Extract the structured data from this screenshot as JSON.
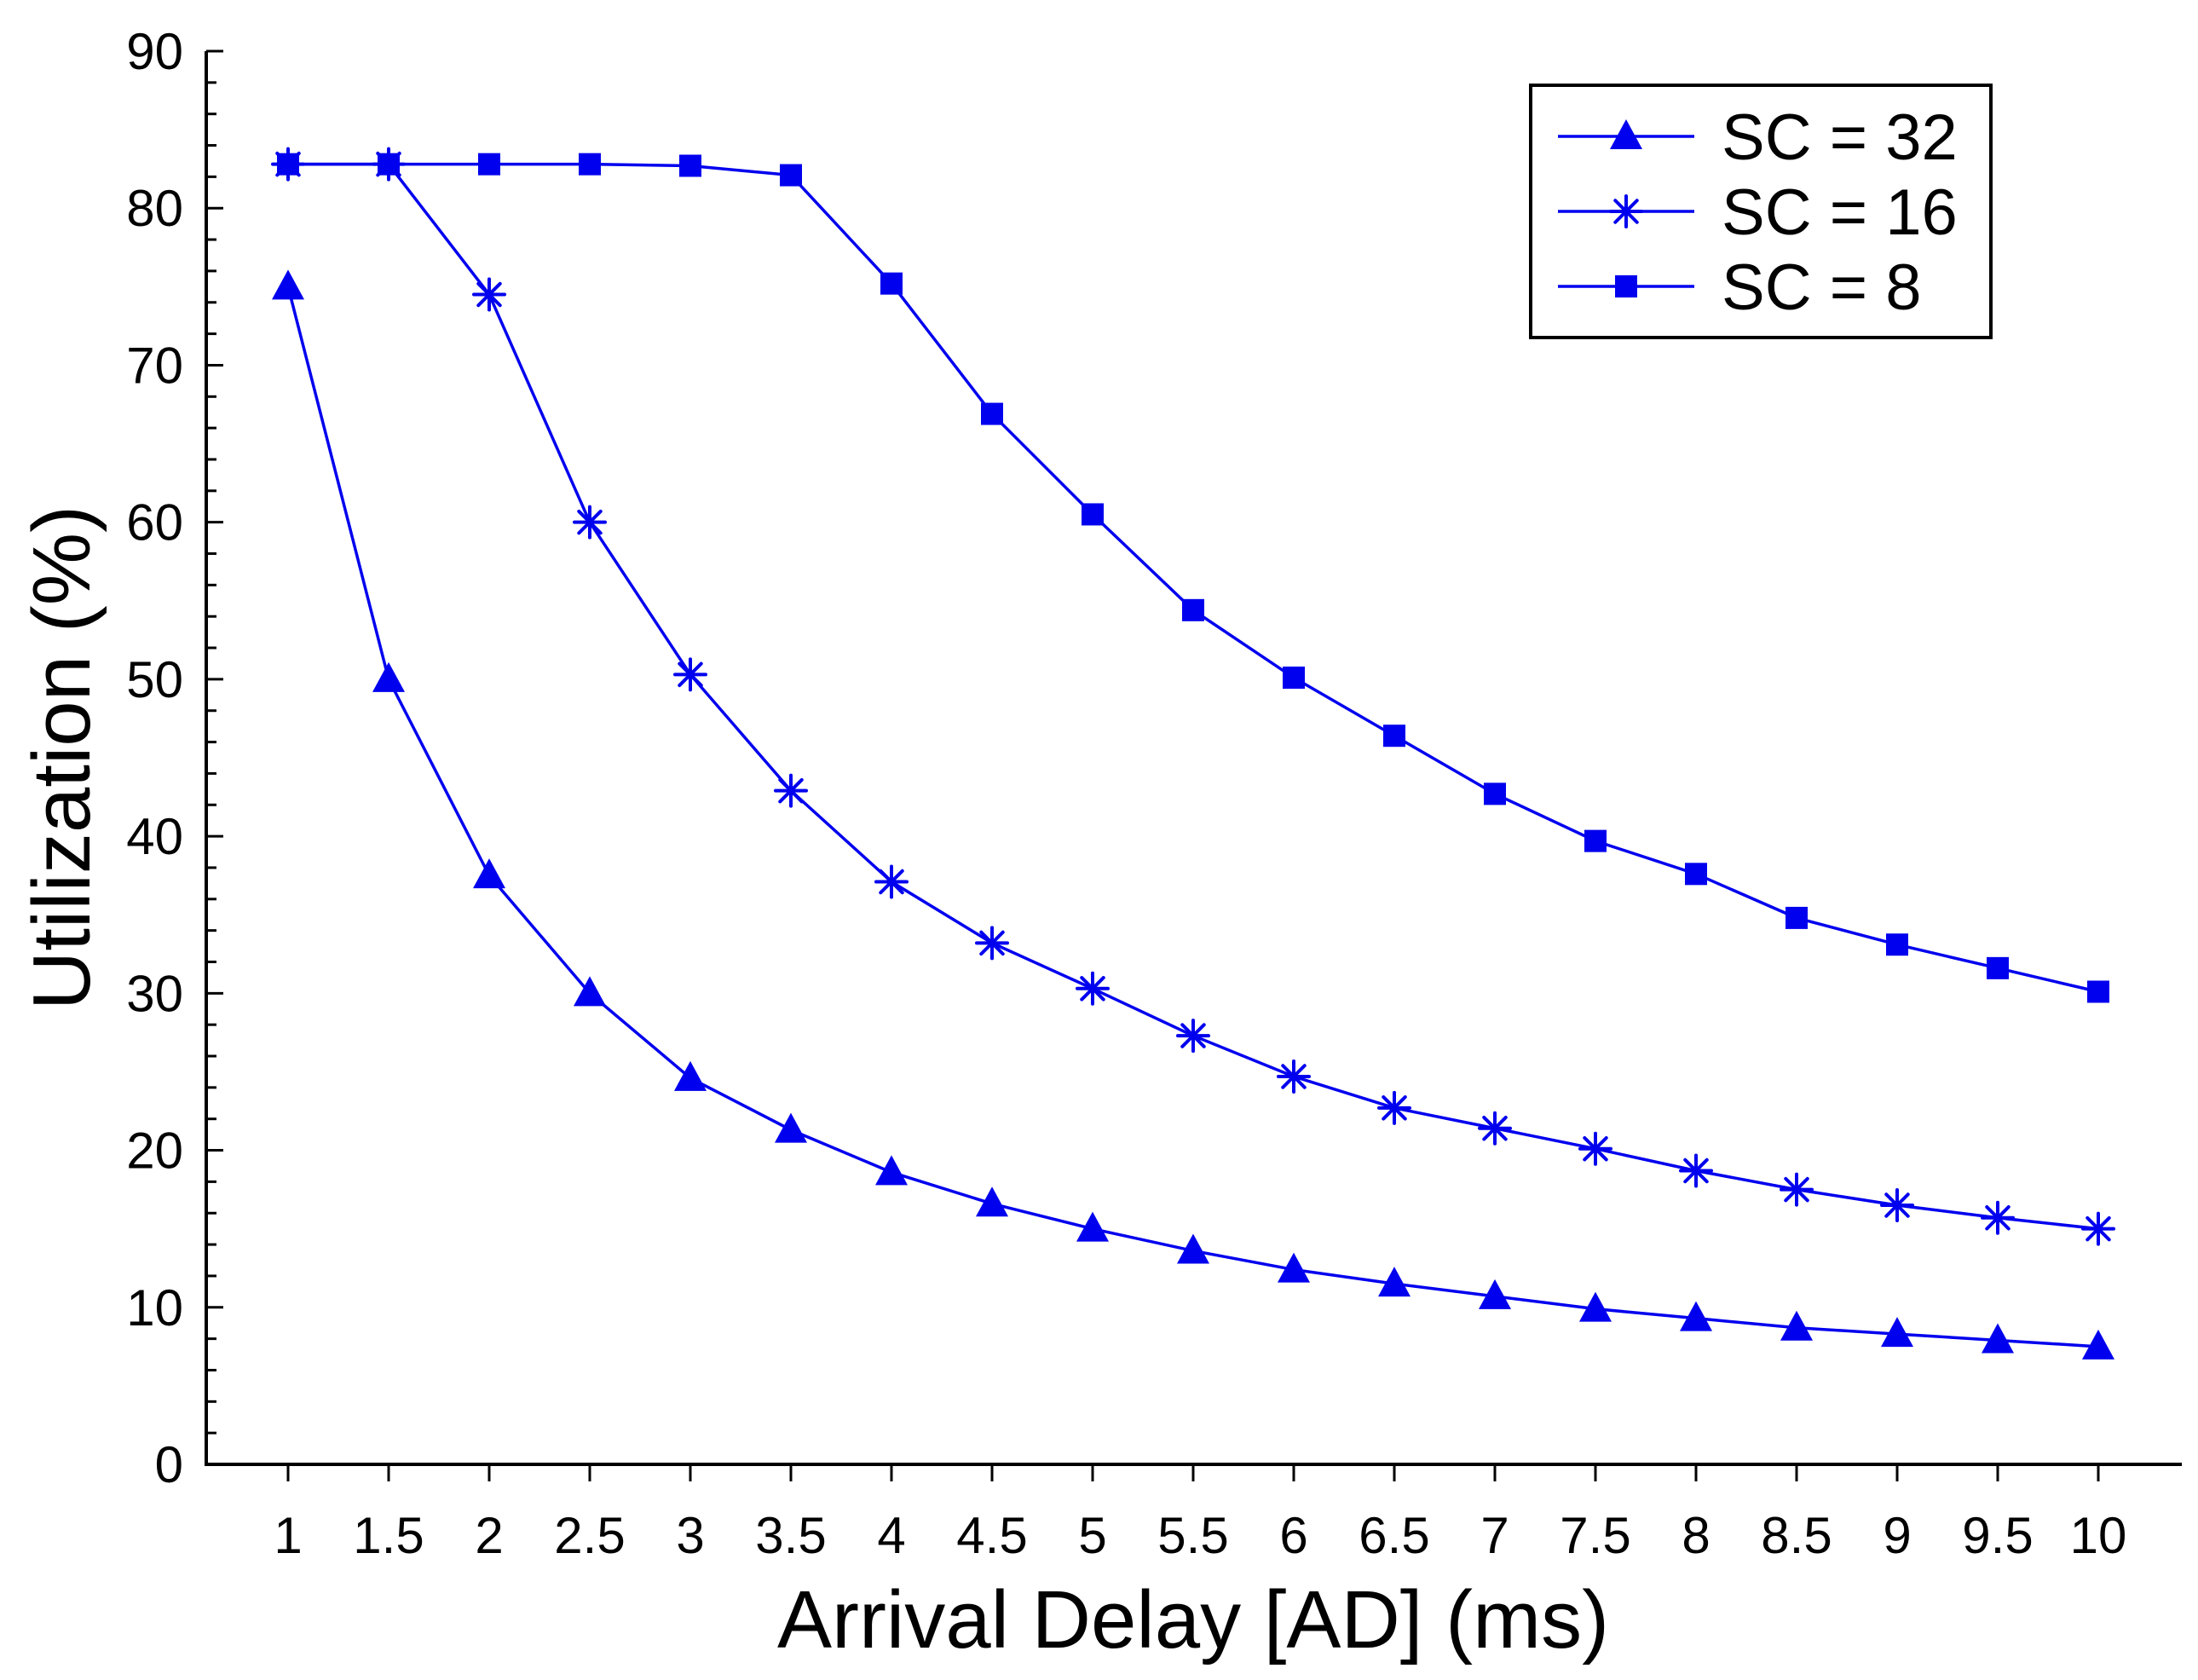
{
  "chart_data": {
    "type": "line",
    "title": "",
    "xlabel": "Arrival Delay [AD] (ms)",
    "ylabel": "Utilization (%)",
    "x": [
      1,
      1.5,
      2,
      2.5,
      3,
      3.5,
      4,
      4.5,
      5,
      5.5,
      6,
      6.5,
      7,
      7.5,
      8,
      8.5,
      9,
      9.5,
      10
    ],
    "x_tick_labels": [
      "1",
      "1.5",
      "2",
      "2.5",
      "3",
      "3.5",
      "4",
      "4.5",
      "5",
      "5.5",
      "6",
      "6.5",
      "7",
      "7.5",
      "8",
      "8.5",
      "9",
      "9.5",
      "10"
    ],
    "y_ticks": [
      0,
      10,
      20,
      30,
      40,
      50,
      60,
      70,
      80,
      90
    ],
    "ylim": [
      0,
      90
    ],
    "grid": false,
    "legend_position": "top-right",
    "color": "#0000ee",
    "series": [
      {
        "name": "SC = 32",
        "marker": "triangle",
        "values": [
          75,
          50,
          37.5,
          30,
          24.6,
          21.3,
          18.6,
          16.6,
          15,
          13.6,
          12.4,
          11.5,
          10.7,
          9.9,
          9.3,
          8.7,
          8.3,
          7.9,
          7.5
        ]
      },
      {
        "name": "SC = 16",
        "marker": "asterisk",
        "values": [
          82.8,
          82.8,
          74.5,
          60,
          50.3,
          42.9,
          37.1,
          33.2,
          30.3,
          27.3,
          24.7,
          22.7,
          21.4,
          20.1,
          18.7,
          17.5,
          16.5,
          15.7,
          15
        ]
      },
      {
        "name": "SC = 8",
        "marker": "square",
        "values": [
          82.8,
          82.8,
          82.8,
          82.8,
          82.7,
          82.1,
          75.2,
          66.9,
          60.5,
          54.4,
          50.1,
          46.4,
          42.7,
          39.7,
          37.6,
          34.8,
          33.1,
          31.6,
          30.1
        ]
      }
    ]
  }
}
